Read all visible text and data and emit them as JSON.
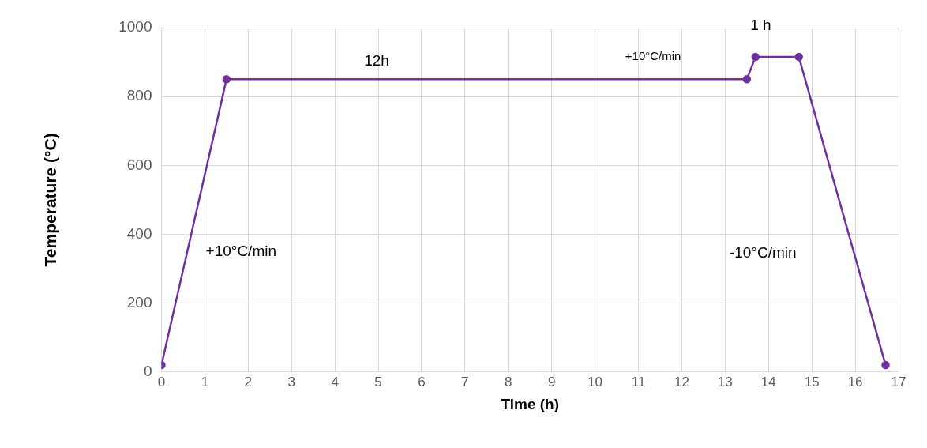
{
  "chart_data": {
    "type": "line",
    "xlabel": "Time (h)",
    "ylabel": "Temperature (°C)",
    "series": [
      {
        "color": "#7030a0",
        "x": [
          0,
          1.5,
          13.5,
          13.7,
          14.7,
          16.7
        ],
        "values": [
          20,
          850,
          850,
          915,
          915,
          20
        ]
      }
    ],
    "xlim": [
      0,
      17
    ],
    "xticks": [
      0,
      1,
      2,
      3,
      4,
      5,
      6,
      7,
      8,
      9,
      10,
      11,
      12,
      13,
      14,
      15,
      16,
      17
    ],
    "ylim": [
      0,
      1000
    ],
    "yticks": [
      0,
      200,
      400,
      600,
      800,
      1000
    ],
    "grid": true,
    "legend": false,
    "marker": "circle",
    "line_style": "solid",
    "annotations": [
      "12h",
      "+10°C/min",
      "1 h",
      "+10°C/min",
      "-10°C/min"
    ]
  }
}
